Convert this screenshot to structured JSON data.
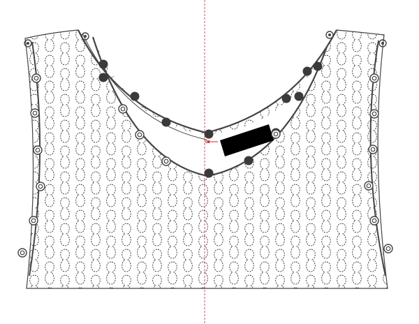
{
  "diagram": {
    "type": "garment-pattern",
    "colors": {
      "background": "#ffffff",
      "outline": "#444444",
      "stitch": "#222222",
      "guide": "#cc2233",
      "bead": "#3a3a3a",
      "label": "#000000"
    },
    "grid": {
      "columns": 22,
      "rows": 12
    }
  }
}
